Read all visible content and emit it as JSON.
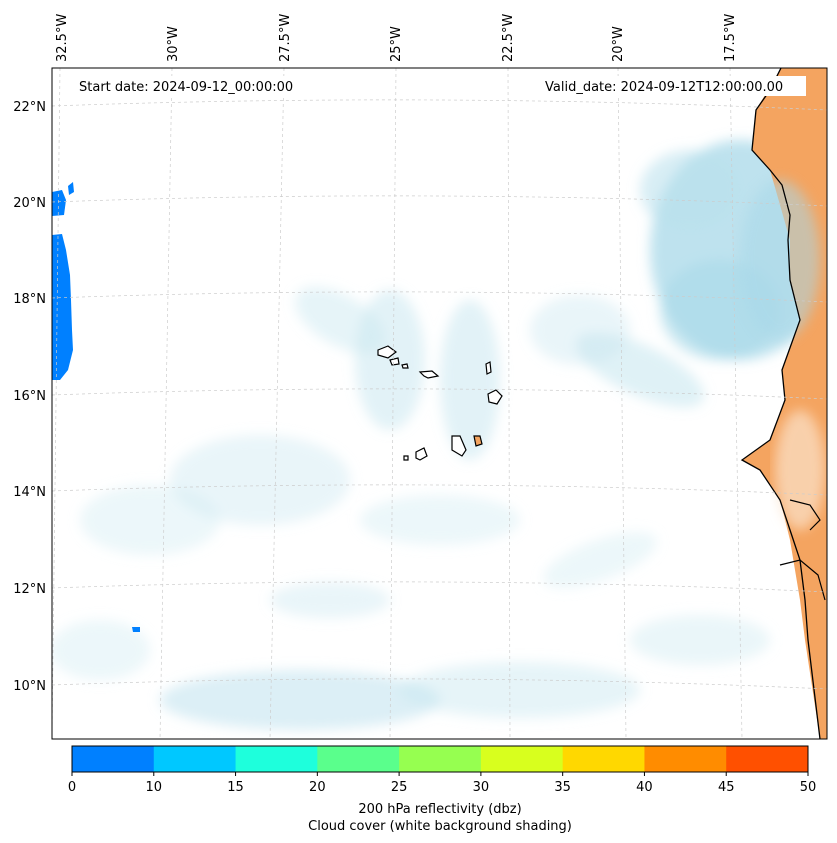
{
  "map": {
    "start_label": "Start date: 2024-09-12_00:00:00",
    "valid_label": "Valid_date: 2024-09-12T12:00:00.00",
    "lon_labels": [
      "32.5°W",
      "30°W",
      "27.5°W",
      "25°W",
      "22.5°W",
      "20°W",
      "17.5°W"
    ],
    "lat_labels": [
      "22°N",
      "20°N",
      "18°N",
      "16°N",
      "14°N",
      "12°N",
      "10°N"
    ]
  },
  "colorbar": {
    "ticks": [
      "0",
      "10",
      "15",
      "20",
      "25",
      "30",
      "35",
      "40",
      "45",
      "50"
    ],
    "colors": [
      "#0080ff",
      "#00c8ff",
      "#1effdc",
      "#5aff8c",
      "#96ff50",
      "#d8ff1e",
      "#ffd800",
      "#ff8c00",
      "#ff5000"
    ],
    "label_line1": "200 hPa reflectivity (dbz)",
    "label_line2": "Cloud cover (white background shading)"
  },
  "colors": {
    "cloud": "#a8d8e8",
    "land_fill": "#f4a460",
    "coast": "#000000",
    "grid": "#cccccc"
  }
}
